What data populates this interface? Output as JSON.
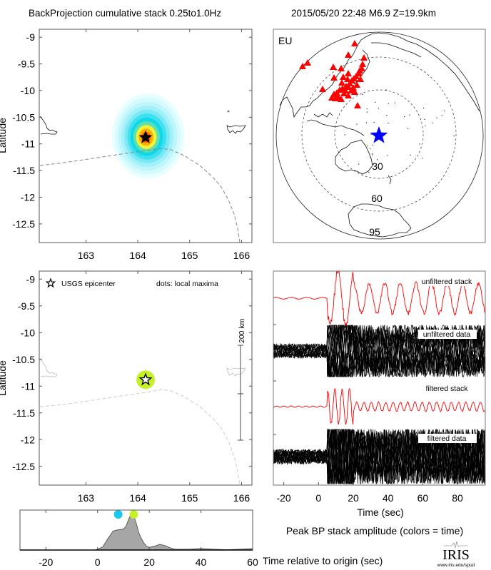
{
  "header": {
    "title_left": "BackProjection cumulative stack 0.25to1.0Hz",
    "title_right": "2015/05/20 22:48  M6.9  Z=19.9km"
  },
  "colors": {
    "stack_trace": "#ff0000",
    "data_trace": "#000000",
    "station_marker": "#ff0000",
    "epicenter_globe_marker": "#0000ff",
    "amplitude_fill": "#a6a6a6",
    "maxima_early": "#19c8f0",
    "maxima_peak": "#c6f02a"
  },
  "chart_data": [
    {
      "id": "bp-map",
      "type": "heatmap",
      "title": "BackProjection cumulative stack 0.25to1.0Hz",
      "xlabel": "",
      "ylabel": "Latitude",
      "xlim": [
        162.1,
        166.2
      ],
      "ylim": [
        -12.85,
        -8.85
      ],
      "x_ticks": [
        163,
        164,
        165,
        166
      ],
      "y_ticks": [
        -9,
        -9.5,
        -10,
        -10.5,
        -11,
        -11.5,
        -12,
        -12.5
      ],
      "grid": false,
      "peak": {
        "lon": 164.15,
        "lat": -10.88
      },
      "epicenter": {
        "lon": 164.15,
        "lat": -10.88,
        "marker": "star"
      },
      "contour_levels": 10,
      "extent_lon": [
        163.5,
        164.9
      ],
      "extent_lat": [
        -11.65,
        -10.05
      ]
    },
    {
      "id": "station-globe",
      "type": "scatter",
      "label": "EU",
      "distance_rings_deg": [
        30,
        60,
        95
      ],
      "epicenter_marker": "star",
      "station_marker": "triangle",
      "station_count_visible": 40
    },
    {
      "id": "maxima-map",
      "type": "scatter",
      "ylabel": "Latitude",
      "xlim": [
        162.1,
        166.2
      ],
      "ylim": [
        -12.85,
        -8.85
      ],
      "x_ticks": [
        163,
        164,
        165,
        166
      ],
      "y_ticks": [
        -9,
        -9.5,
        -10,
        -10.5,
        -11,
        -11.5,
        -12,
        -12.5
      ],
      "legend_star": "USGS epicenter",
      "legend_dots": "dots: local maxima",
      "scale_bar": "200 km",
      "points": [
        {
          "lon": 164.15,
          "lat": -10.88,
          "time_s": 13
        }
      ],
      "epicenter": {
        "lon": 164.15,
        "lat": -10.88
      }
    },
    {
      "id": "waveforms",
      "type": "line",
      "xlabel": "Time (sec)",
      "xlim": [
        -26,
        96
      ],
      "x_ticks": [
        -20,
        0,
        20,
        40,
        60,
        80
      ],
      "series": [
        {
          "name": "unfiltered stack",
          "color": "red",
          "onset_s": 5
        },
        {
          "name": "unfiltered data",
          "color": "black",
          "onset_s": 5
        },
        {
          "name": "filtered stack",
          "color": "red",
          "onset_s": 5
        },
        {
          "name": "filtered data",
          "color": "black",
          "onset_s": 5
        }
      ]
    },
    {
      "id": "peak-amplitude",
      "type": "area",
      "title": "Peak BP stack amplitude (colors = time)",
      "xlabel": "Time relative to origin (sec)",
      "xlim": [
        -30,
        60
      ],
      "x_ticks": [
        -20,
        0,
        20,
        40,
        60
      ],
      "x": [
        -30,
        -1,
        0,
        2,
        4,
        6,
        8,
        10,
        11,
        12,
        13,
        14,
        15,
        16,
        17,
        18,
        19,
        20,
        22,
        24,
        26,
        28,
        30,
        35,
        40,
        45,
        50,
        55,
        60
      ],
      "y": [
        0,
        0,
        0.02,
        0.08,
        0.3,
        0.5,
        0.53,
        0.55,
        0.62,
        0.8,
        0.95,
        0.9,
        0.7,
        0.45,
        0.3,
        0.18,
        0.1,
        0.07,
        0.1,
        0.15,
        0.12,
        0.06,
        0.02,
        0.02,
        0.04,
        0.02,
        0.01,
        0.02,
        0.04
      ],
      "ylim": [
        0,
        1.05
      ],
      "maxima_markers": [
        {
          "time_s": 8,
          "color": "#19c8f0"
        },
        {
          "time_s": 14,
          "color": "#c6f02a"
        }
      ]
    }
  ],
  "footer": {
    "logo_text": "IRIS",
    "logo_url_text": "www.iris.edu/spud"
  }
}
